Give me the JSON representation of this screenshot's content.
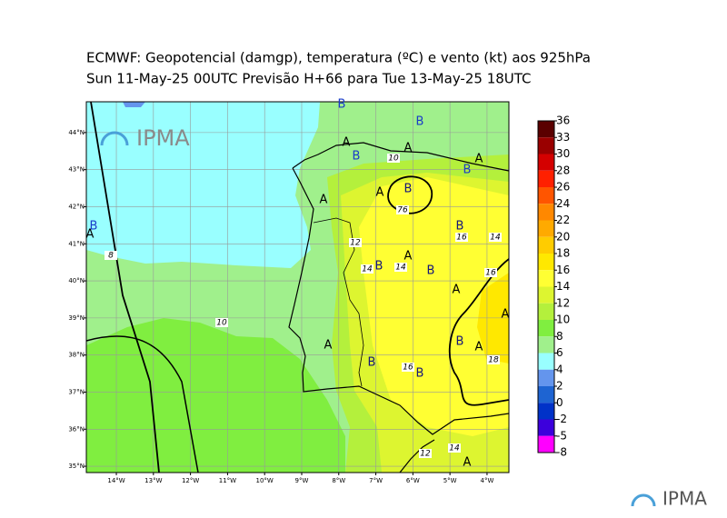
{
  "title": [
    "ECMWF:  Geopotencial (damgp), temperatura (ºC) e vento (kt) aos 925hPa",
    "Sun 11-May-25 00UTC Previsão H+66 para Tue 13-May-25 18UTC"
  ],
  "map": {
    "lonlim": [
      -14.81,
      -3.41
    ],
    "latlim": [
      34.83,
      44.83
    ],
    "lon_ticks": [
      {
        "value": -14,
        "label": "14°W"
      },
      {
        "value": -13,
        "label": "13°W"
      },
      {
        "value": -12,
        "label": "12°W"
      },
      {
        "value": -11,
        "label": "11°W"
      },
      {
        "value": -10,
        "label": "10°W"
      },
      {
        "value": -9,
        "label": "9°W"
      },
      {
        "value": -8,
        "label": "8°W"
      },
      {
        "value": -7,
        "label": "7°W"
      },
      {
        "value": -6,
        "label": "6°W"
      },
      {
        "value": -5,
        "label": "5°W"
      },
      {
        "value": -4,
        "label": "4°W"
      }
    ],
    "lat_ticks": [
      {
        "value": 44,
        "label": "44°N"
      },
      {
        "value": 43,
        "label": "43°N"
      },
      {
        "value": 42,
        "label": "42°N"
      },
      {
        "value": 41,
        "label": "41°N"
      },
      {
        "value": 40,
        "label": "40°N"
      },
      {
        "value": 39,
        "label": "39°N"
      },
      {
        "value": 38,
        "label": "38°N"
      },
      {
        "value": 37,
        "label": "37°N"
      },
      {
        "value": 36,
        "label": "36°N"
      },
      {
        "value": 35,
        "label": "35°N"
      }
    ],
    "labels": [
      "B",
      "B",
      "A",
      "B",
      "A",
      10,
      "B",
      "A",
      "A",
      "A",
      "B",
      76,
      "B",
      "A",
      "B",
      16,
      14,
      12,
      8,
      "A",
      14,
      "B",
      14,
      "B",
      16,
      "A",
      10,
      "A",
      "A",
      "B",
      "A",
      18,
      "B",
      16,
      "B",
      14,
      12,
      "A"
    ],
    "logo": "IPMA"
  },
  "colorbar": {
    "levels": [
      36,
      33,
      30,
      28,
      26,
      24,
      22,
      20,
      18,
      16,
      14,
      12,
      10,
      8,
      6,
      4,
      2,
      0,
      -2,
      -5,
      -8
    ],
    "colors": [
      "#5a0000",
      "#9a0000",
      "#d40000",
      "#ff2000",
      "#ff5500",
      "#ff8800",
      "#ffaa00",
      "#ffcc00",
      "#ffe800",
      "#ffff33",
      "#ddf530",
      "#b4f03c",
      "#80ee40",
      "#a0f08c",
      "#99ffff",
      "#6495ed",
      "#1e64d2",
      "#0032c8",
      "#3c00dc",
      "#9b30d0"
    ],
    "bottom_color": "#ff00ff"
  },
  "footer_logo": "IPMA"
}
